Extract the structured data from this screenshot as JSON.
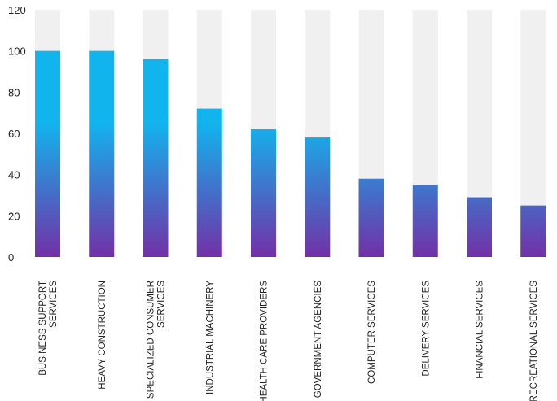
{
  "chart_data": {
    "type": "bar",
    "title": "",
    "xlabel": "",
    "ylabel": "",
    "ylim": [
      0,
      120
    ],
    "yticks": [
      0,
      20,
      40,
      60,
      80,
      100,
      120
    ],
    "categories": [
      [
        "BUSINESS SUPPORT",
        "SERVICES"
      ],
      [
        "HEAVY CONSTRUCTION"
      ],
      [
        "SPECIALIZED CONSUMER",
        "SERVICES"
      ],
      [
        "INDUSTRIAL MACHINERY"
      ],
      [
        "HEALTH CARE PROVIDERS"
      ],
      [
        "GOVERNMENT AGENCIES"
      ],
      [
        "COMPUTER SERVICES"
      ],
      [
        "DELIVERY SERVICES"
      ],
      [
        "FINANCIAL SERVICES"
      ],
      [
        "RECREATIONAL SERVICES"
      ]
    ],
    "values": [
      100,
      100,
      96,
      72,
      62,
      58,
      38,
      35,
      29,
      25
    ],
    "background_values": [
      120,
      120,
      120,
      120,
      120,
      120,
      120,
      120,
      120,
      120
    ],
    "grid": false,
    "legend": "none",
    "colors": {
      "bar_top": "#12b4ee",
      "bar_bottom": "#7230a6",
      "background_bar": "#f0f0f0"
    }
  }
}
